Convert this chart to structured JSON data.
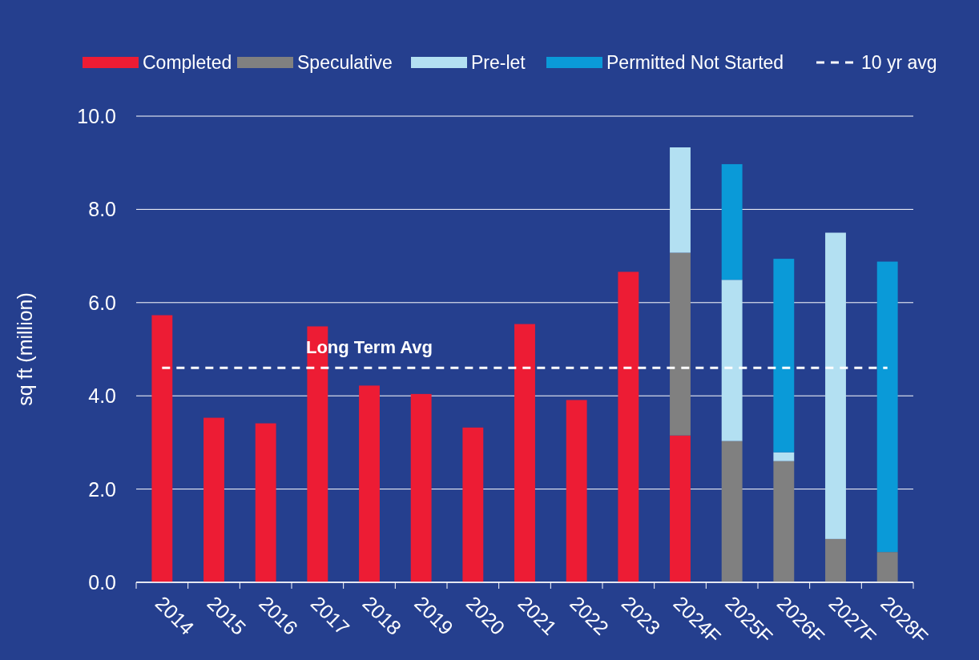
{
  "chart_data": {
    "type": "bar",
    "stacked": true,
    "ylabel": "sq ft (million)",
    "categories": [
      "2014",
      "2015",
      "2016",
      "2017",
      "2018",
      "2019",
      "2020",
      "2021",
      "2022",
      "2023",
      "2024F",
      "2025F",
      "2026F",
      "2027F",
      "2028F"
    ],
    "series": [
      {
        "name": "Completed",
        "color": "#ed1c34",
        "values": [
          5.73,
          3.53,
          3.41,
          5.49,
          4.22,
          4.04,
          3.32,
          5.54,
          3.91,
          6.66,
          3.15,
          null,
          null,
          null,
          null
        ]
      },
      {
        "name": "Speculative",
        "color": "#808080",
        "values": [
          null,
          null,
          null,
          null,
          null,
          null,
          null,
          null,
          null,
          null,
          3.92,
          3.03,
          2.6,
          0.93,
          0.65
        ]
      },
      {
        "name": "Pre-let",
        "color": "#b3e0f2",
        "values": [
          null,
          null,
          null,
          null,
          null,
          null,
          null,
          null,
          null,
          null,
          2.26,
          3.46,
          0.19,
          6.57,
          null
        ]
      },
      {
        "name": "Permitted Not Started",
        "color": "#0a9ad8",
        "values": [
          null,
          null,
          null,
          null,
          null,
          null,
          null,
          null,
          null,
          null,
          null,
          2.48,
          4.15,
          null,
          6.23
        ]
      },
      {
        "name": "10 yr avg",
        "type": "line",
        "color": "#ffffff",
        "line_style": "dashed",
        "values": [
          4.6,
          4.6,
          4.6,
          4.6,
          4.6,
          4.6,
          4.6,
          4.6,
          4.6,
          4.6,
          4.6,
          4.6,
          4.6,
          4.6,
          4.6
        ]
      }
    ],
    "ylim": [
      0,
      10
    ],
    "yticks": [
      {
        "value": 0,
        "label": "0.0"
      },
      {
        "value": 2,
        "label": "2.0"
      },
      {
        "value": 4,
        "label": "4.0"
      },
      {
        "value": 6,
        "label": "6.0"
      },
      {
        "value": 8,
        "label": "8.0"
      },
      {
        "value": 10,
        "label": "10.0"
      }
    ],
    "grid": "y",
    "legend": "top",
    "annotations": [
      {
        "text": "Long Term Avg",
        "x": "2018",
        "y": 4.6
      }
    ]
  }
}
